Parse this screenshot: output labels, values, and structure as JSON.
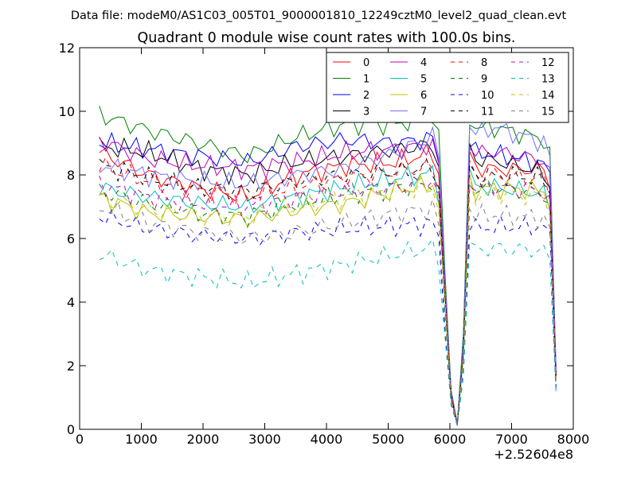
{
  "chart_data": {
    "type": "line",
    "suptitle": "Data file: modeM0/AS1C03_005T01_9000001810_12249cztM0_level2_quad_clean.evt",
    "title": "Quadrant 0 module wise count rates with 100.0s bins.",
    "xlabel": "",
    "ylabel": "",
    "x_offset_label": "+2.52604e8",
    "xlim": [
      0,
      8000
    ],
    "ylim": [
      0,
      12
    ],
    "xticks": [
      0,
      1000,
      2000,
      3000,
      4000,
      5000,
      6000,
      7000,
      8000
    ],
    "yticks": [
      0,
      2,
      4,
      6,
      8,
      10,
      12
    ],
    "xtick_labels": [
      "0",
      "1000",
      "2000",
      "3000",
      "4000",
      "5000",
      "6000",
      "7000",
      "8000"
    ],
    "ytick_labels": [
      "0",
      "2",
      "4",
      "6",
      "8",
      "10",
      "12"
    ],
    "grid": false,
    "legend_position": "top-right",
    "x_start": 320,
    "x_step": 100,
    "x_end": 7720,
    "dip_profile": {
      "x": [
        5800,
        5900,
        6000,
        6100,
        6150,
        6200,
        6300,
        6400,
        7600,
        7700,
        7720
      ],
      "factor": [
        1.0,
        0.6,
        0.15,
        0.03,
        0.0,
        0.12,
        1.0,
        0.95,
        0.95,
        0.7,
        0.2
      ]
    },
    "series": [
      {
        "name": "0",
        "color": "#ff0000",
        "dash": "solid",
        "base": [
          8.7,
          8.0,
          7.6,
          7.3,
          8.0,
          8.3,
          8.4,
          8.8,
          8.6,
          8.6
        ]
      },
      {
        "name": "1",
        "color": "#008000",
        "dash": "solid",
        "base": [
          9.9,
          9.4,
          9.0,
          8.6,
          9.2,
          9.6,
          9.6,
          9.9,
          10.0,
          9.6
        ]
      },
      {
        "name": "2",
        "color": "#0000ff",
        "dash": "solid",
        "base": [
          9.0,
          8.8,
          8.6,
          8.4,
          8.9,
          9.1,
          9.0,
          9.2,
          9.1,
          8.8
        ]
      },
      {
        "name": "3",
        "color": "#000000",
        "dash": "solid",
        "base": [
          8.9,
          8.7,
          8.2,
          8.0,
          8.4,
          8.6,
          8.8,
          9.0,
          8.9,
          8.5
        ]
      },
      {
        "name": "4",
        "color": "#bf00bf",
        "dash": "solid",
        "base": [
          9.1,
          8.5,
          8.3,
          8.2,
          8.4,
          8.7,
          8.8,
          9.0,
          9.2,
          8.9
        ]
      },
      {
        "name": "5",
        "color": "#00bfbf",
        "dash": "solid",
        "base": [
          7.6,
          7.3,
          7.1,
          7.0,
          7.3,
          7.6,
          7.9,
          8.1,
          8.0,
          7.8
        ]
      },
      {
        "name": "6",
        "color": "#bfbf00",
        "dash": "solid",
        "base": [
          7.3,
          6.8,
          6.7,
          6.6,
          6.9,
          7.1,
          7.5,
          7.8,
          8.0,
          7.9
        ]
      },
      {
        "name": "7",
        "color": "#7070ff",
        "dash": "solid",
        "base": [
          8.3,
          8.0,
          7.8,
          7.7,
          8.0,
          8.2,
          8.7,
          9.4,
          10.0,
          9.5
        ]
      },
      {
        "name": "8",
        "color": "#ff0000",
        "dash": "dashed",
        "base": [
          8.3,
          7.8,
          7.5,
          7.3,
          7.6,
          7.9,
          8.1,
          8.3,
          8.4,
          8.3
        ]
      },
      {
        "name": "9",
        "color": "#008000",
        "dash": "dashed",
        "base": [
          7.5,
          7.1,
          6.8,
          6.7,
          7.1,
          7.4,
          7.6,
          7.8,
          8.0,
          7.8
        ]
      },
      {
        "name": "10",
        "color": "#0000ff",
        "dash": "dashed",
        "base": [
          6.7,
          6.3,
          6.1,
          6.0,
          6.2,
          6.3,
          6.4,
          6.5,
          6.7,
          6.7
        ]
      },
      {
        "name": "11",
        "color": "#000000",
        "dash": "dashed",
        "base": [
          8.3,
          7.9,
          7.6,
          7.5,
          7.8,
          8.0,
          8.1,
          8.3,
          8.4,
          8.3
        ]
      },
      {
        "name": "12",
        "color": "#bf00bf",
        "dash": "dashed",
        "base": [
          7.7,
          7.3,
          7.1,
          7.0,
          7.3,
          7.5,
          7.6,
          7.9,
          8.0,
          7.9
        ]
      },
      {
        "name": "13",
        "color": "#00bfbf",
        "dash": "dashed",
        "base": [
          5.5,
          5.0,
          4.8,
          4.6,
          4.9,
          5.2,
          5.5,
          5.8,
          6.0,
          5.9
        ]
      },
      {
        "name": "14",
        "color": "#bfbf00",
        "dash": "dashed",
        "base": [
          7.3,
          6.9,
          6.7,
          6.7,
          7.0,
          7.3,
          7.5,
          7.6,
          7.8,
          7.7
        ]
      },
      {
        "name": "15",
        "color": "#808080",
        "dash": "dashed",
        "base": [
          7.0,
          6.5,
          6.2,
          6.0,
          6.2,
          6.5,
          6.8,
          7.0,
          7.1,
          7.0
        ]
      }
    ]
  }
}
